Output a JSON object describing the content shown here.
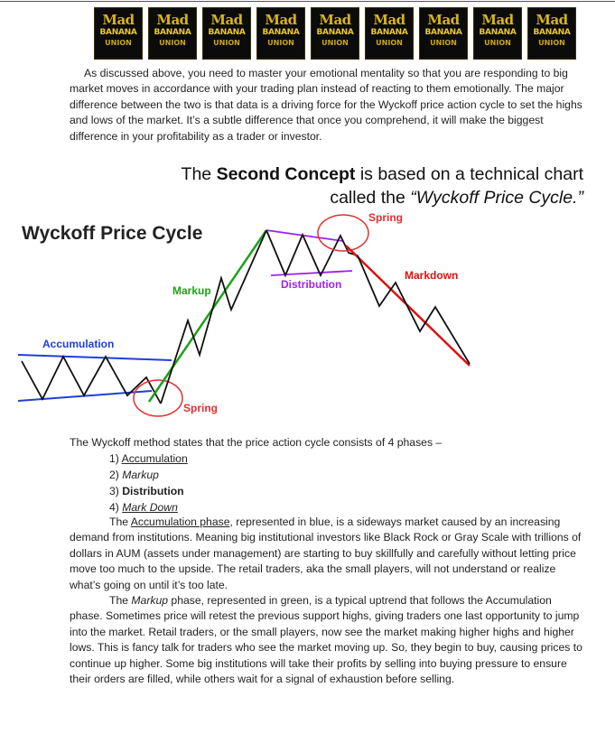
{
  "logos": [
    {
      "line1": "Mad",
      "line2": "BANANA",
      "line3": "UNION"
    },
    {
      "line1": "Mad",
      "line2": "BANANA",
      "line3": "UNION"
    },
    {
      "line1": "Mad",
      "line2": "BANANA",
      "line3": "UNION"
    },
    {
      "line1": "Mad",
      "line2": "BANANA",
      "line3": "UNION"
    },
    {
      "line1": "Mad",
      "line2": "BANANA",
      "line3": "UNION"
    },
    {
      "line1": "Mad",
      "line2": "BANANA",
      "line3": "UNION"
    },
    {
      "line1": "Mad",
      "line2": "BANANA",
      "line3": "UNION"
    },
    {
      "line1": "Mad",
      "line2": "BANANA",
      "line3": "UNION"
    },
    {
      "line1": "Mad",
      "line2": "BANANA",
      "line3": "UNION"
    }
  ],
  "intro_paragraph": "As discussed above, you need to master your emotional mentality so that you are responding to big market moves in accordance with your trading plan instead of reacting to them emotionally. The major difference between the two is that data is a driving force for the Wyckoff price action cycle to set the highs and lows of the market. It’s a subtle difference that once you comprehend, it will make the biggest difference in your profitability as a trader or investor.",
  "concept": {
    "pre": "The ",
    "bold": "Second Concept",
    "mid": " is based on a technical chart",
    "line2_pre": "called the ",
    "italic": "“Wyckoff Price Cycle.”"
  },
  "figure": {
    "title": "Wyckoff Price Cycle",
    "label_accumulation": "Accumulation",
    "label_markup": "Markup",
    "label_distribution": "Distribution",
    "label_markdown": "Markdown",
    "label_spring_top": "Spring",
    "label_spring_bottom": "Spring"
  },
  "colors": {
    "accumulation": "#1f3fd6",
    "markup": "#1aa31a",
    "distribution": "#a020f0",
    "markdown": "#e01010",
    "spring": "#e03030"
  },
  "phases_intro": "The Wyckoff method states that the price action cycle consists of 4 phases –",
  "phases": [
    {
      "num": "1) ",
      "name": "Accumulation"
    },
    {
      "num": "2) ",
      "name": "Markup"
    },
    {
      "num": "3) ",
      "name": "Distribution"
    },
    {
      "num": "4) ",
      "name": "Mark Down"
    }
  ],
  "accumulation_paragraph": {
    "pre": "The ",
    "link": "Accumulation phase",
    "rest": ", represented in blue, is a sideways market caused by an increasing demand from institutions. Meaning big institutional investors like Black Rock or Gray Scale with trillions of dollars in AUM (assets under management) are starting to buy skillfully and carefully without letting price move too much to the upside. The retail traders, aka the small players, will not understand or realize what’s going on until it’s too late."
  },
  "markup_paragraph": {
    "pre": "The ",
    "italic": "Markup",
    "rest": " phase, represented in green, is a typical uptrend that follows the Accumulation phase. Sometimes price will retest the previous support highs, giving traders one last opportunity to jump into the market. Retail traders, or the small players, now see the market making higher highs and higher lows. This is fancy talk for traders who see the market moving up. So, they begin to buy, causing prices to continue up higher. Some big institutions will take their profits by selling into buying pressure to ensure their orders are filled, while others wait for a signal of exhaustion before selling."
  }
}
